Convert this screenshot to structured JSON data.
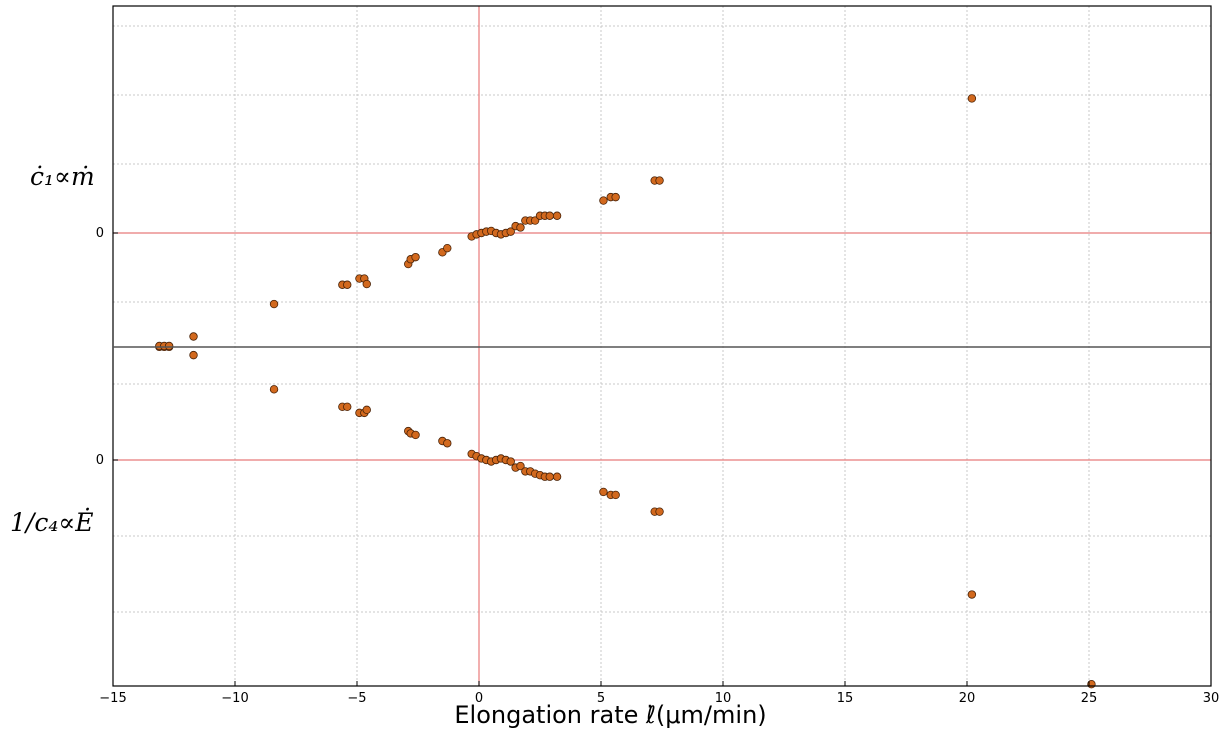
{
  "chart_data": {
    "type": "scatter",
    "xlabel": "Elongation rate ℓ̇(μm/min)",
    "xlim": [
      -15,
      30
    ],
    "x_ticks": [
      "−15",
      "−10",
      "−5",
      "0",
      "5",
      "10",
      "15",
      "20",
      "25",
      "30"
    ],
    "grid": true,
    "marker_color": "#d2691e",
    "reference_line_color": "#e87a7a",
    "panels": [
      {
        "ylabel": "ċ₁∝ṁ",
        "y_ticks": [
          "0"
        ],
        "ylim": [
          -1.65,
          3.3
        ],
        "points": [
          {
            "x": -13.1,
            "y": -1.65
          },
          {
            "x": -12.9,
            "y": -1.65
          },
          {
            "x": -12.7,
            "y": -1.65
          },
          {
            "x": -11.7,
            "y": -1.5
          },
          {
            "x": -8.4,
            "y": -1.03
          },
          {
            "x": -5.6,
            "y": -0.75
          },
          {
            "x": -5.4,
            "y": -0.75
          },
          {
            "x": -4.9,
            "y": -0.66
          },
          {
            "x": -4.7,
            "y": -0.66
          },
          {
            "x": -4.6,
            "y": -0.74
          },
          {
            "x": -2.9,
            "y": -0.45
          },
          {
            "x": -2.8,
            "y": -0.38
          },
          {
            "x": -2.6,
            "y": -0.35
          },
          {
            "x": -1.5,
            "y": -0.28
          },
          {
            "x": -1.3,
            "y": -0.22
          },
          {
            "x": -0.3,
            "y": -0.05
          },
          {
            "x": -0.1,
            "y": -0.02
          },
          {
            "x": 0.1,
            "y": 0.0
          },
          {
            "x": 0.3,
            "y": 0.02
          },
          {
            "x": 0.5,
            "y": 0.03
          },
          {
            "x": 0.7,
            "y": 0.0
          },
          {
            "x": 0.9,
            "y": -0.02
          },
          {
            "x": 1.1,
            "y": 0.0
          },
          {
            "x": 1.3,
            "y": 0.02
          },
          {
            "x": 1.5,
            "y": 0.1
          },
          {
            "x": 1.7,
            "y": 0.08
          },
          {
            "x": 1.9,
            "y": 0.18
          },
          {
            "x": 2.1,
            "y": 0.18
          },
          {
            "x": 2.3,
            "y": 0.18
          },
          {
            "x": 2.5,
            "y": 0.25
          },
          {
            "x": 2.7,
            "y": 0.25
          },
          {
            "x": 2.9,
            "y": 0.25
          },
          {
            "x": 3.2,
            "y": 0.25
          },
          {
            "x": 5.1,
            "y": 0.47
          },
          {
            "x": 5.4,
            "y": 0.52
          },
          {
            "x": 5.6,
            "y": 0.52
          },
          {
            "x": 7.2,
            "y": 0.76
          },
          {
            "x": 7.4,
            "y": 0.76
          },
          {
            "x": 20.2,
            "y": 1.95
          }
        ]
      },
      {
        "ylabel": "1/c₄∝Ė",
        "y_ticks": [
          "0"
        ],
        "ylim": [
          -2.95,
          1.5
        ],
        "points": [
          {
            "x": -13.1,
            "y": 1.5
          },
          {
            "x": -12.9,
            "y": 1.5
          },
          {
            "x": -12.7,
            "y": 1.5
          },
          {
            "x": -11.7,
            "y": 1.38
          },
          {
            "x": -8.4,
            "y": 0.93
          },
          {
            "x": -5.6,
            "y": 0.7
          },
          {
            "x": -5.4,
            "y": 0.7
          },
          {
            "x": -4.9,
            "y": 0.62
          },
          {
            "x": -4.7,
            "y": 0.62
          },
          {
            "x": -4.6,
            "y": 0.66
          },
          {
            "x": -2.9,
            "y": 0.38
          },
          {
            "x": -2.8,
            "y": 0.35
          },
          {
            "x": -2.6,
            "y": 0.33
          },
          {
            "x": -1.5,
            "y": 0.25
          },
          {
            "x": -1.3,
            "y": 0.22
          },
          {
            "x": -0.3,
            "y": 0.08
          },
          {
            "x": -0.1,
            "y": 0.05
          },
          {
            "x": 0.1,
            "y": 0.02
          },
          {
            "x": 0.3,
            "y": 0.0
          },
          {
            "x": 0.5,
            "y": -0.02
          },
          {
            "x": 0.7,
            "y": 0.0
          },
          {
            "x": 0.9,
            "y": 0.02
          },
          {
            "x": 1.1,
            "y": 0.0
          },
          {
            "x": 1.3,
            "y": -0.02
          },
          {
            "x": 1.5,
            "y": -0.1
          },
          {
            "x": 1.7,
            "y": -0.08
          },
          {
            "x": 1.9,
            "y": -0.15
          },
          {
            "x": 2.1,
            "y": -0.15
          },
          {
            "x": 2.3,
            "y": -0.18
          },
          {
            "x": 2.5,
            "y": -0.2
          },
          {
            "x": 2.7,
            "y": -0.22
          },
          {
            "x": 2.9,
            "y": -0.22
          },
          {
            "x": 3.2,
            "y": -0.22
          },
          {
            "x": 5.1,
            "y": -0.42
          },
          {
            "x": 5.4,
            "y": -0.46
          },
          {
            "x": 5.6,
            "y": -0.46
          },
          {
            "x": 7.2,
            "y": -0.68
          },
          {
            "x": 7.4,
            "y": -0.68
          },
          {
            "x": 20.2,
            "y": -1.77
          },
          {
            "x": 25.1,
            "y": -2.95
          }
        ]
      }
    ]
  }
}
